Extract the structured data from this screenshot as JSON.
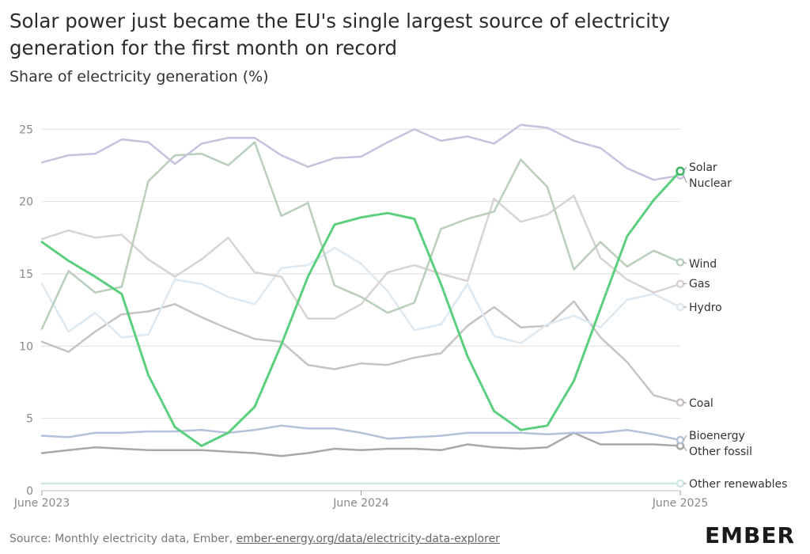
{
  "title": "Solar power just became the EU's single largest source of electricity generation for the first month on record",
  "subtitle": "Share of electricity generation (%)",
  "source_text": "Source: Monthly electricity data, Ember, ",
  "source_link": "ember-energy.org/data/electricity-data-explorer",
  "logo": "EMBER",
  "chart_data": {
    "type": "line",
    "x": [
      "2023-06",
      "2023-07",
      "2023-08",
      "2023-09",
      "2023-10",
      "2023-11",
      "2023-12",
      "2024-01",
      "2024-02",
      "2024-03",
      "2024-04",
      "2024-05",
      "2024-06",
      "2024-07",
      "2024-08",
      "2024-09",
      "2024-10",
      "2024-11",
      "2024-12",
      "2025-01",
      "2025-02",
      "2025-03",
      "2025-04",
      "2025-05",
      "2025-06"
    ],
    "xticks": [
      "June 2023",
      "June 2024",
      "June 2025"
    ],
    "ylim": [
      0,
      26
    ],
    "yticks": [
      "0",
      "5",
      "10",
      "15",
      "20",
      "25"
    ],
    "grid": true,
    "series": [
      {
        "name": "Other renewables",
        "color": "#cfe6e4",
        "highlight": false,
        "values": [
          0.5,
          0.5,
          0.5,
          0.5,
          0.5,
          0.5,
          0.5,
          0.5,
          0.5,
          0.5,
          0.5,
          0.5,
          0.5,
          0.5,
          0.5,
          0.5,
          0.5,
          0.5,
          0.5,
          0.5,
          0.5,
          0.5,
          0.5,
          0.5,
          0.5
        ]
      },
      {
        "name": "Other fossil",
        "color": "#a8a8a8",
        "highlight": false,
        "values": [
          2.6,
          2.8,
          3.0,
          2.9,
          2.8,
          2.8,
          2.8,
          2.7,
          2.6,
          2.4,
          2.6,
          2.9,
          2.8,
          2.9,
          2.9,
          2.8,
          3.2,
          3.0,
          2.9,
          3.0,
          4.0,
          3.2,
          3.2,
          3.2,
          3.1
        ]
      },
      {
        "name": "Bioenergy",
        "color": "#b3c2d9",
        "highlight": false,
        "values": [
          3.8,
          3.7,
          4.0,
          4.0,
          4.1,
          4.1,
          4.2,
          4.0,
          4.2,
          4.5,
          4.3,
          4.3,
          4.0,
          3.6,
          3.7,
          3.8,
          4.0,
          4.0,
          4.0,
          3.9,
          4.0,
          4.0,
          4.2,
          3.9,
          3.5
        ]
      },
      {
        "name": "Coal",
        "color": "#c8c2c2",
        "highlight": false,
        "values": [
          10.3,
          9.6,
          11.0,
          12.2,
          12.4,
          12.9,
          12.0,
          11.2,
          10.5,
          10.3,
          8.7,
          8.4,
          8.8,
          8.7,
          9.2,
          9.5,
          11.4,
          12.7,
          11.3,
          11.4,
          13.1,
          10.6,
          8.9,
          6.6,
          6.1
        ]
      },
      {
        "name": "Hydro",
        "color": "#dde8f0",
        "highlight": false,
        "values": [
          14.3,
          11.0,
          12.3,
          10.6,
          10.8,
          14.6,
          14.3,
          13.4,
          12.9,
          15.4,
          15.6,
          16.8,
          15.7,
          13.8,
          11.1,
          11.5,
          14.3,
          10.7,
          10.2,
          11.5,
          12.1,
          11.3,
          13.2,
          13.6,
          12.7
        ]
      },
      {
        "name": "Gas",
        "color": "#d9d2d2",
        "highlight": false,
        "values": [
          17.4,
          18.0,
          17.5,
          17.7,
          16.0,
          14.8,
          16.0,
          17.5,
          15.1,
          14.8,
          11.9,
          11.9,
          12.9,
          15.1,
          15.6,
          15.0,
          14.5,
          20.2,
          18.6,
          19.1,
          20.4,
          16.1,
          14.6,
          13.7,
          14.3
        ]
      },
      {
        "name": "Wind",
        "color": "#b9cfbc",
        "highlight": false,
        "values": [
          11.2,
          15.2,
          13.7,
          14.1,
          21.4,
          23.2,
          23.3,
          22.5,
          24.1,
          19.0,
          19.9,
          14.2,
          13.4,
          12.3,
          13.0,
          18.1,
          18.8,
          19.3,
          22.9,
          21.0,
          15.3,
          17.2,
          15.5,
          16.6,
          15.8
        ]
      },
      {
        "name": "Nuclear",
        "color": "#c6c2de",
        "highlight": false,
        "values": [
          22.7,
          23.2,
          23.3,
          24.3,
          24.1,
          22.6,
          24.0,
          24.4,
          24.4,
          23.2,
          22.4,
          23.0,
          23.1,
          24.1,
          25.0,
          24.2,
          24.5,
          24.0,
          25.3,
          25.1,
          24.2,
          23.7,
          22.3,
          21.5,
          21.8
        ]
      },
      {
        "name": "Solar",
        "color": "#5ccf7e",
        "highlight": true,
        "values": [
          17.2,
          15.9,
          14.8,
          13.6,
          8.0,
          4.4,
          3.1,
          4.0,
          5.8,
          10.1,
          14.8,
          18.4,
          18.9,
          19.2,
          18.8,
          14.3,
          9.3,
          5.5,
          4.2,
          4.5,
          7.6,
          12.6,
          17.6,
          20.1,
          22.1
        ]
      }
    ]
  }
}
